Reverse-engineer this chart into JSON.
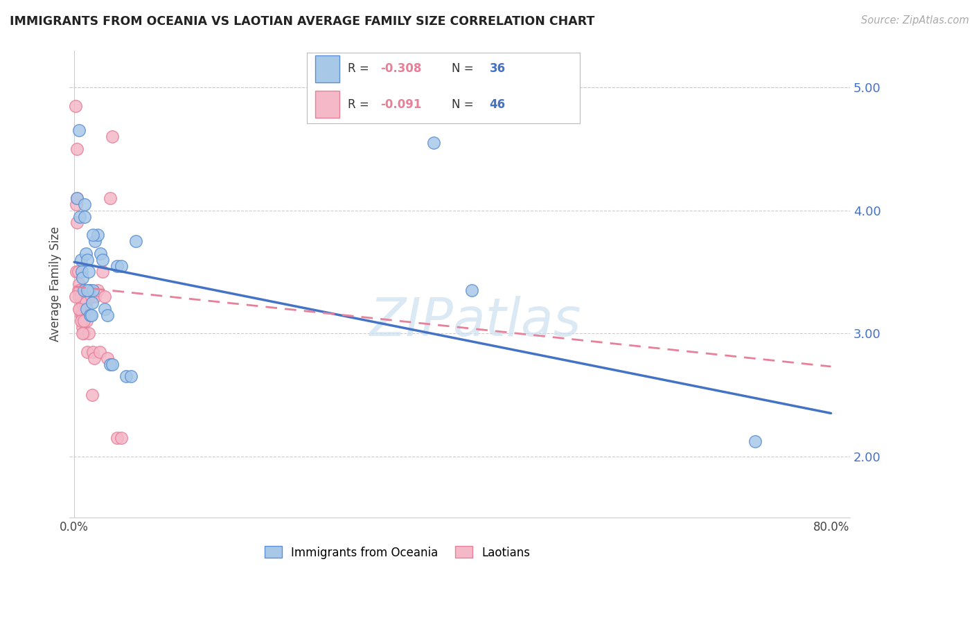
{
  "title": "IMMIGRANTS FROM OCEANIA VS LAOTIAN AVERAGE FAMILY SIZE CORRELATION CHART",
  "source": "Source: ZipAtlas.com",
  "ylabel": "Average Family Size",
  "ylim": [
    1.5,
    5.3
  ],
  "xlim": [
    -0.005,
    0.82
  ],
  "yticks": [
    2.0,
    3.0,
    4.0,
    5.0
  ],
  "xticks": [
    0.0,
    0.1,
    0.2,
    0.3,
    0.4,
    0.5,
    0.6,
    0.7,
    0.8
  ],
  "series1_label": "Immigrants from Oceania",
  "series1_R": "-0.308",
  "series1_N": "36",
  "series2_label": "Laotians",
  "series2_R": "-0.091",
  "series2_N": "46",
  "series1_color": "#a8c8e8",
  "series2_color": "#f4b8c8",
  "series1_edge_color": "#5b8fd4",
  "series2_edge_color": "#e8809a",
  "series1_line_color": "#4472c4",
  "series2_line_color": "#e8809a",
  "blue_tick_color": "#4472c4",
  "watermark_color": "#cce0f0",
  "background_color": "#ffffff",
  "series1_x": [
    0.003,
    0.005,
    0.006,
    0.007,
    0.008,
    0.009,
    0.01,
    0.011,
    0.011,
    0.012,
    0.013,
    0.014,
    0.015,
    0.016,
    0.017,
    0.018,
    0.019,
    0.02,
    0.022,
    0.025,
    0.028,
    0.03,
    0.032,
    0.035,
    0.038,
    0.04,
    0.045,
    0.05,
    0.055,
    0.06,
    0.065,
    0.38,
    0.42,
    0.72,
    0.014,
    0.02
  ],
  "series1_y": [
    4.1,
    4.65,
    3.95,
    3.6,
    3.5,
    3.45,
    3.35,
    4.05,
    3.95,
    3.65,
    3.2,
    3.6,
    3.5,
    3.35,
    3.15,
    3.15,
    3.25,
    3.35,
    3.75,
    3.8,
    3.65,
    3.6,
    3.2,
    3.15,
    2.75,
    2.75,
    3.55,
    3.55,
    2.65,
    2.65,
    3.75,
    4.55,
    3.35,
    2.12,
    3.35,
    3.8
  ],
  "series2_x": [
    0.001,
    0.002,
    0.002,
    0.003,
    0.003,
    0.004,
    0.004,
    0.005,
    0.005,
    0.006,
    0.006,
    0.007,
    0.007,
    0.008,
    0.008,
    0.009,
    0.009,
    0.01,
    0.01,
    0.011,
    0.012,
    0.013,
    0.014,
    0.015,
    0.016,
    0.017,
    0.018,
    0.019,
    0.02,
    0.021,
    0.022,
    0.025,
    0.027,
    0.03,
    0.032,
    0.035,
    0.038,
    0.04,
    0.045,
    0.05,
    0.001,
    0.003,
    0.005,
    0.007,
    0.009,
    0.01
  ],
  "series2_y": [
    4.85,
    4.05,
    3.5,
    4.1,
    3.9,
    3.5,
    3.35,
    3.4,
    3.3,
    3.35,
    3.2,
    3.3,
    3.15,
    3.25,
    3.1,
    3.15,
    3.05,
    3.0,
    3.1,
    3.2,
    3.25,
    3.1,
    2.85,
    3.0,
    3.35,
    3.35,
    3.3,
    2.5,
    2.85,
    2.8,
    3.3,
    3.35,
    2.85,
    3.5,
    3.3,
    2.8,
    4.1,
    4.6,
    2.15,
    2.15,
    3.3,
    4.5,
    3.2,
    3.1,
    3.0,
    3.1
  ],
  "trend1_x0": 0.0,
  "trend1_y0": 3.58,
  "trend1_x1": 0.8,
  "trend1_y1": 2.35,
  "trend2_x0": 0.0,
  "trend2_y0": 3.38,
  "trend2_x1": 0.8,
  "trend2_y1": 2.73
}
